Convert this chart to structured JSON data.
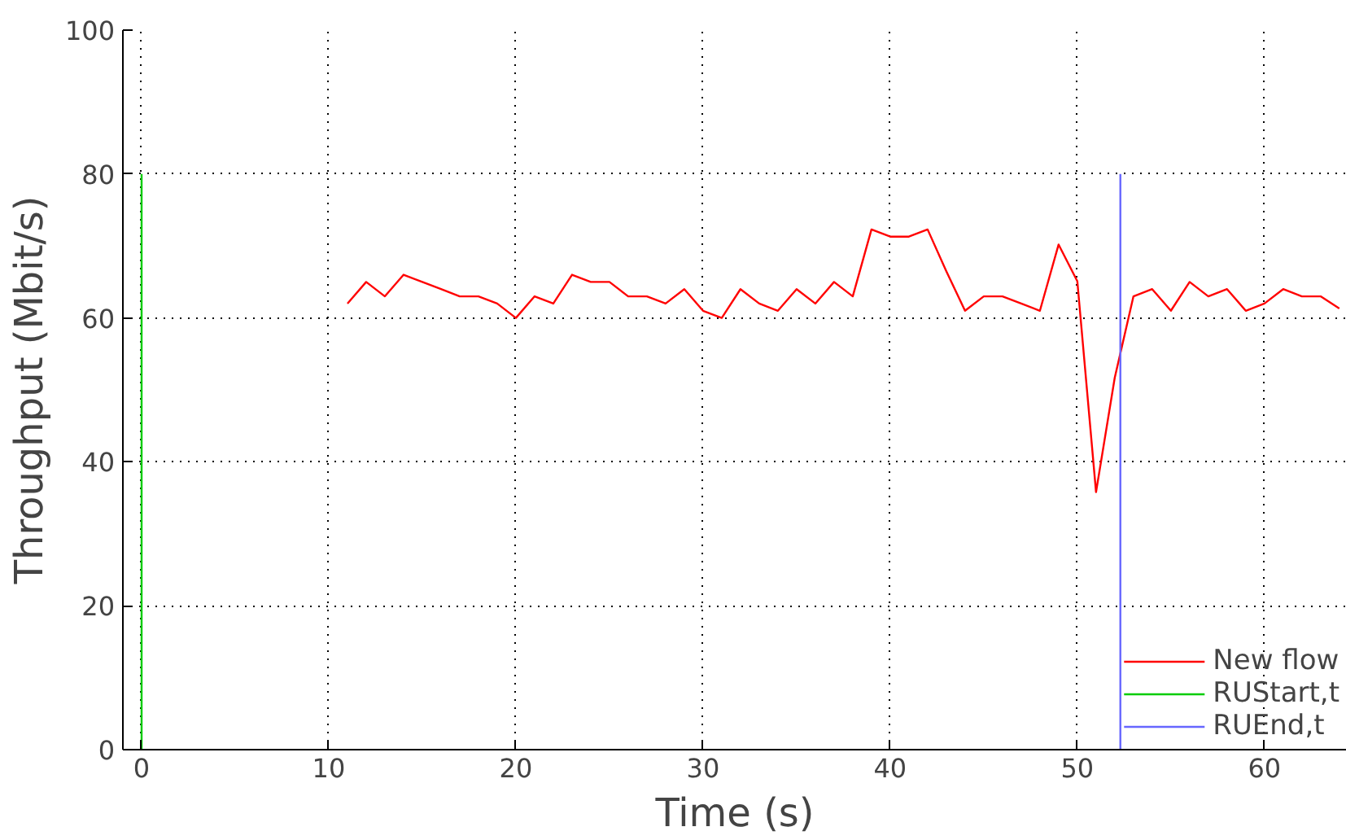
{
  "chart_data": {
    "type": "line",
    "xlabel": "Time (s)",
    "ylabel": "Throughput (Mbit/s)",
    "xlim": [
      -1,
      64.4
    ],
    "ylim": [
      0,
      100
    ],
    "xticks": [
      0,
      10,
      20,
      30,
      40,
      50,
      60
    ],
    "yticks": [
      0,
      20,
      40,
      60,
      80,
      100
    ],
    "grid": true,
    "legend": "bottom right",
    "line_style": "solid",
    "series": [
      {
        "name": "New flow",
        "color": "#ff0000",
        "x": [
          11,
          12,
          13,
          14,
          15,
          16,
          17,
          18,
          19,
          20,
          21,
          22,
          23,
          24,
          25,
          26,
          27,
          28,
          29,
          30,
          31,
          32,
          33,
          34,
          35,
          36,
          37,
          38,
          39,
          40,
          41,
          42,
          43,
          44,
          45,
          46,
          47,
          48,
          49,
          50,
          51,
          52,
          53,
          54,
          55,
          56,
          57,
          58,
          59,
          60,
          61,
          62,
          63,
          64
        ],
        "values": [
          62,
          65,
          63,
          66,
          65,
          64,
          63,
          63,
          62,
          60,
          63,
          62,
          66,
          65,
          65,
          63,
          63,
          62,
          64,
          61,
          60,
          64,
          62,
          61,
          64,
          62,
          65,
          63,
          72.3,
          71.3,
          71.3,
          72.3,
          66.5,
          61,
          63,
          63,
          62,
          61,
          70.2,
          65.1,
          35.8,
          51.7,
          63,
          64,
          61,
          65,
          63,
          64,
          61,
          62,
          64,
          63,
          63,
          61.3
        ]
      },
      {
        "name": "RUStart,t",
        "color": "#00cc00",
        "x": [
          0,
          0
        ],
        "values": [
          0,
          80
        ]
      },
      {
        "name": "RUEnd,t",
        "color": "#6666ff",
        "x": [
          52.3,
          52.3
        ],
        "values": [
          0,
          80
        ]
      }
    ]
  }
}
